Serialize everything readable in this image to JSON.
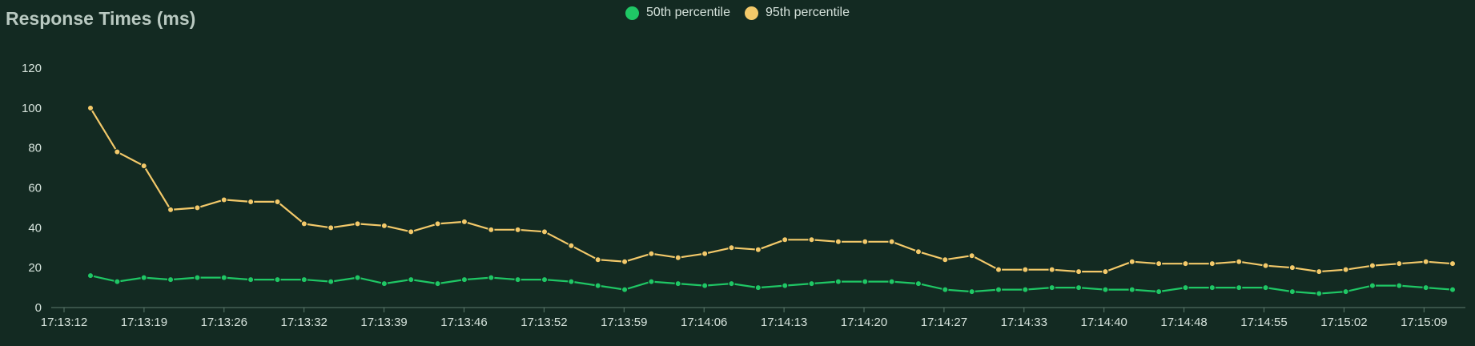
{
  "colors": {
    "background": "#132a22",
    "axis": "#5d7a6d",
    "p50": "#1fc765",
    "p95": "#f3c96a"
  },
  "chart_data": {
    "type": "line",
    "title": "Response Times (ms)",
    "legend_position": "top-center",
    "grid": false,
    "ylim": [
      0,
      120
    ],
    "y_ticks": [
      0,
      20,
      40,
      60,
      80,
      100,
      120
    ],
    "x_ticks": [
      "17:13:12",
      "17:13:19",
      "17:13:26",
      "17:13:32",
      "17:13:39",
      "17:13:46",
      "17:13:52",
      "17:13:59",
      "17:14:06",
      "17:14:13",
      "17:14:20",
      "17:14:27",
      "17:14:33",
      "17:14:40",
      "17:14:48",
      "17:14:55",
      "17:15:02",
      "17:15:09"
    ],
    "series": [
      {
        "name": "50th percentile",
        "color": "#1fc765",
        "values": [
          16,
          13,
          15,
          14,
          15,
          15,
          14,
          14,
          14,
          13,
          15,
          12,
          14,
          12,
          14,
          15,
          14,
          14,
          13,
          11,
          9,
          13,
          12,
          11,
          12,
          10,
          11,
          12,
          13,
          13,
          13,
          12,
          9,
          8,
          9,
          9,
          10,
          10,
          9,
          9,
          8,
          10,
          10,
          10,
          10,
          8,
          7,
          8,
          11,
          11,
          10,
          9
        ]
      },
      {
        "name": "95th percentile",
        "color": "#f3c96a",
        "values": [
          100,
          78,
          71,
          49,
          50,
          54,
          53,
          53,
          42,
          40,
          42,
          41,
          38,
          42,
          43,
          39,
          39,
          38,
          31,
          24,
          23,
          27,
          25,
          27,
          30,
          29,
          34,
          34,
          33,
          33,
          33,
          28,
          24,
          26,
          19,
          19,
          19,
          18,
          18,
          23,
          22,
          22,
          22,
          23,
          21,
          20,
          18,
          19,
          21,
          22,
          23,
          22
        ]
      }
    ]
  }
}
